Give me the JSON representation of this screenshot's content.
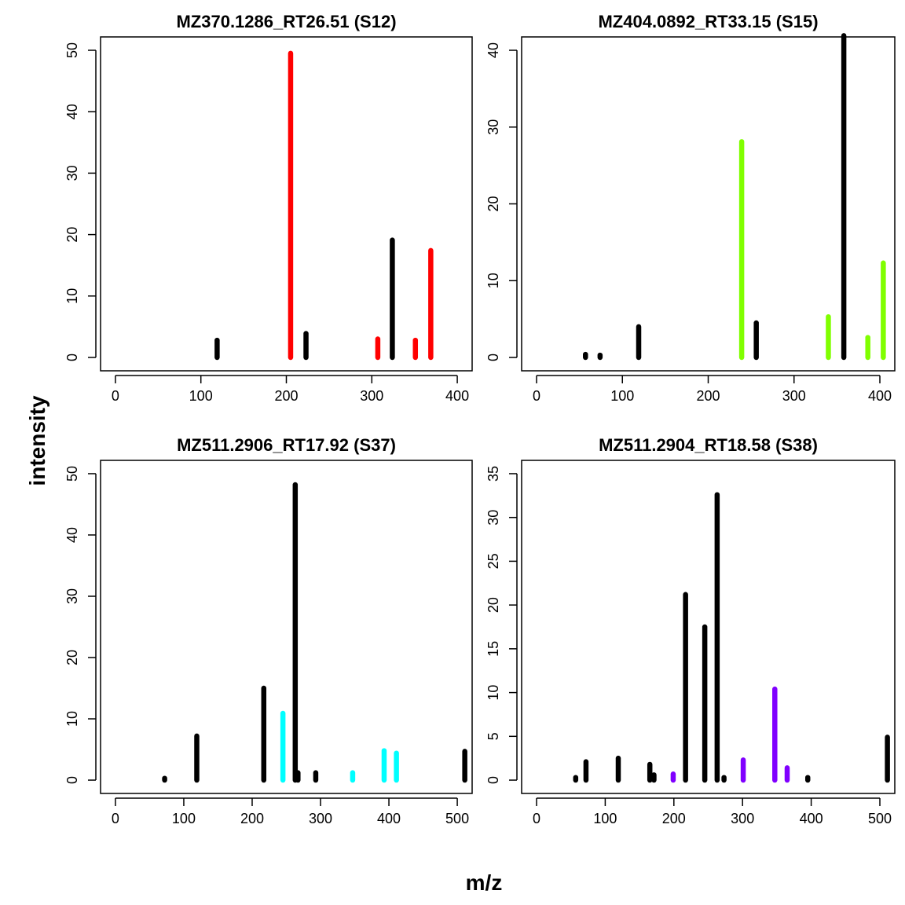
{
  "figure": {
    "xlabel": "m/z",
    "ylabel": "intensity"
  },
  "chart_data": [
    {
      "type": "bar",
      "title": "MZ370.1286_RT26.51 (S12)",
      "xlim": [
        0,
        400
      ],
      "ylim": [
        0,
        50
      ],
      "xticks": [
        0,
        100,
        200,
        300,
        400
      ],
      "yticks": [
        0,
        10,
        20,
        30,
        40,
        50
      ],
      "peaks": [
        {
          "mz": 119,
          "intensity": 2.8,
          "color": "#000000"
        },
        {
          "mz": 205,
          "intensity": 49.5,
          "color": "#FF0000"
        },
        {
          "mz": 223,
          "intensity": 3.9,
          "color": "#000000"
        },
        {
          "mz": 307,
          "intensity": 3.0,
          "color": "#FF0000"
        },
        {
          "mz": 324,
          "intensity": 19.1,
          "color": "#000000"
        },
        {
          "mz": 351,
          "intensity": 2.8,
          "color": "#FF0000"
        },
        {
          "mz": 369,
          "intensity": 17.4,
          "color": "#FF0000"
        }
      ]
    },
    {
      "type": "bar",
      "title": "MZ404.0892_RT33.15 (S15)",
      "xlim": [
        0,
        400
      ],
      "ylim": [
        0,
        40
      ],
      "xticks": [
        0,
        100,
        200,
        300,
        400
      ],
      "yticks": [
        0,
        10,
        20,
        30,
        40
      ],
      "peaks": [
        {
          "mz": 57,
          "intensity": 0.4,
          "color": "#000000"
        },
        {
          "mz": 74,
          "intensity": 0.3,
          "color": "#000000"
        },
        {
          "mz": 119,
          "intensity": 4.0,
          "color": "#000000"
        },
        {
          "mz": 239,
          "intensity": 28.1,
          "color": "#80FF00"
        },
        {
          "mz": 256,
          "intensity": 4.5,
          "color": "#000000"
        },
        {
          "mz": 340,
          "intensity": 5.3,
          "color": "#80FF00"
        },
        {
          "mz": 358,
          "intensity": 41.9,
          "color": "#000000"
        },
        {
          "mz": 386,
          "intensity": 2.6,
          "color": "#80FF00"
        },
        {
          "mz": 404,
          "intensity": 12.3,
          "color": "#80FF00"
        }
      ]
    },
    {
      "type": "bar",
      "title": "MZ511.2906_RT17.92 (S37)",
      "xlim": [
        0,
        500
      ],
      "ylim": [
        0,
        50
      ],
      "xticks": [
        0,
        100,
        200,
        300,
        400,
        500
      ],
      "yticks": [
        0,
        10,
        20,
        30,
        40,
        50
      ],
      "peaks": [
        {
          "mz": 72,
          "intensity": 0.3,
          "color": "#000000"
        },
        {
          "mz": 119,
          "intensity": 7.2,
          "color": "#000000"
        },
        {
          "mz": 217,
          "intensity": 15.0,
          "color": "#000000"
        },
        {
          "mz": 245,
          "intensity": 10.9,
          "color": "#00FFFF"
        },
        {
          "mz": 263,
          "intensity": 48.2,
          "color": "#000000"
        },
        {
          "mz": 267,
          "intensity": 1.2,
          "color": "#000000"
        },
        {
          "mz": 293,
          "intensity": 1.2,
          "color": "#000000"
        },
        {
          "mz": 347,
          "intensity": 1.2,
          "color": "#00FFFF"
        },
        {
          "mz": 393,
          "intensity": 4.8,
          "color": "#00FFFF"
        },
        {
          "mz": 411,
          "intensity": 4.4,
          "color": "#00FFFF"
        },
        {
          "mz": 511,
          "intensity": 4.7,
          "color": "#000000"
        }
      ]
    },
    {
      "type": "bar",
      "title": "MZ511.2904_RT18.58 (S38)",
      "xlim": [
        0,
        500
      ],
      "ylim": [
        0,
        35
      ],
      "xticks": [
        0,
        100,
        200,
        300,
        400,
        500
      ],
      "yticks": [
        0,
        5,
        10,
        15,
        20,
        25,
        30,
        35
      ],
      "peaks": [
        {
          "mz": 57,
          "intensity": 0.3,
          "color": "#000000"
        },
        {
          "mz": 72,
          "intensity": 2.1,
          "color": "#000000"
        },
        {
          "mz": 119,
          "intensity": 2.5,
          "color": "#000000"
        },
        {
          "mz": 165,
          "intensity": 1.8,
          "color": "#000000"
        },
        {
          "mz": 171,
          "intensity": 0.6,
          "color": "#000000"
        },
        {
          "mz": 199,
          "intensity": 0.7,
          "color": "#8000FF"
        },
        {
          "mz": 217,
          "intensity": 21.2,
          "color": "#000000"
        },
        {
          "mz": 245,
          "intensity": 17.5,
          "color": "#000000"
        },
        {
          "mz": 263,
          "intensity": 32.6,
          "color": "#000000"
        },
        {
          "mz": 273,
          "intensity": 0.3,
          "color": "#000000"
        },
        {
          "mz": 301,
          "intensity": 2.3,
          "color": "#8000FF"
        },
        {
          "mz": 347,
          "intensity": 10.4,
          "color": "#8000FF"
        },
        {
          "mz": 365,
          "intensity": 1.4,
          "color": "#8000FF"
        },
        {
          "mz": 395,
          "intensity": 0.3,
          "color": "#000000"
        },
        {
          "mz": 511,
          "intensity": 4.9,
          "color": "#000000"
        }
      ]
    }
  ]
}
